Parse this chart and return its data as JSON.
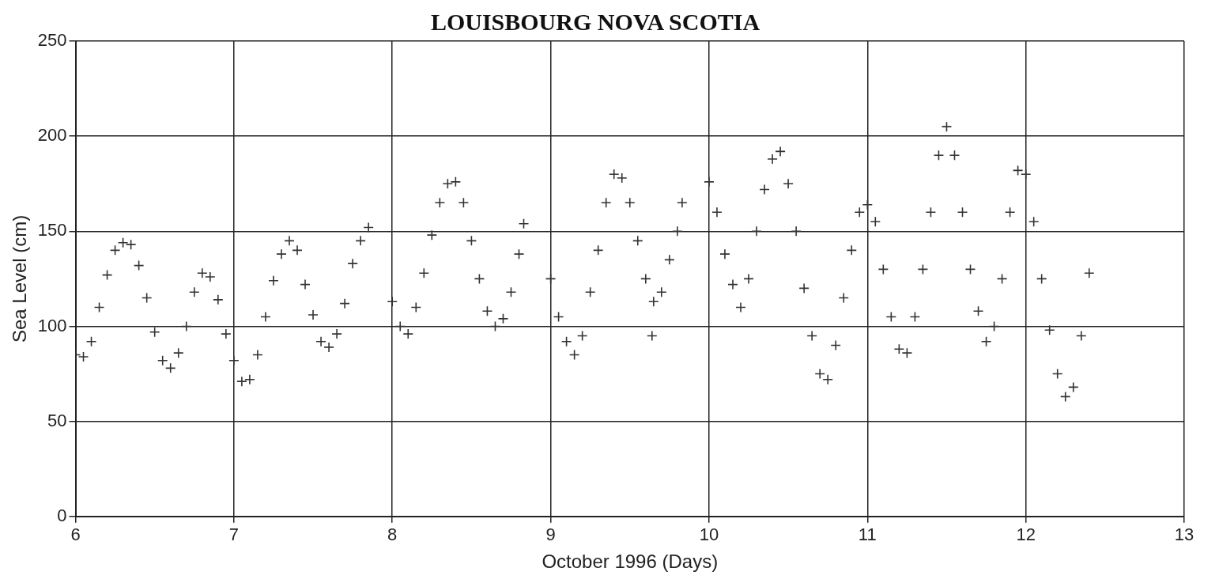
{
  "chart_data": {
    "type": "scatter",
    "title": "LOUISBOURG NOVA SCOTIA",
    "xlabel": "October 1996 (Days)",
    "ylabel": "Sea Level (cm)",
    "xlim": [
      6,
      13
    ],
    "xticks": [
      6,
      7,
      8,
      9,
      10,
      11,
      12,
      13
    ],
    "ylim": [
      0,
      250
    ],
    "yticks": [
      0,
      50,
      100,
      150,
      200,
      250
    ],
    "grid": true,
    "marker": "cross",
    "series": [
      {
        "color": "#333333",
        "x": [
          6.0,
          6.05,
          6.1,
          6.15,
          6.2,
          6.25,
          6.3,
          6.35,
          6.4,
          6.45,
          6.5,
          6.55,
          6.6,
          6.65,
          6.7,
          6.75,
          6.8,
          6.85,
          6.9,
          6.95,
          7.0,
          7.05,
          7.1,
          7.15,
          7.2,
          7.25,
          7.3,
          7.35,
          7.4,
          7.45,
          7.5,
          7.55,
          7.6,
          7.65,
          7.7,
          7.75,
          7.8,
          7.85,
          8.0,
          8.05,
          8.1,
          8.15,
          8.2,
          8.25,
          8.3,
          8.35,
          8.4,
          8.45,
          8.5,
          8.55,
          8.6,
          8.65,
          8.7,
          8.75,
          8.8,
          8.83,
          9.0,
          9.05,
          9.1,
          9.15,
          9.2,
          9.25,
          9.3,
          9.35,
          9.4,
          9.45,
          9.5,
          9.55,
          9.6,
          9.64,
          9.65,
          9.7,
          9.75,
          9.8,
          9.83,
          10.0,
          10.05,
          10.1,
          10.15,
          10.2,
          10.25,
          10.3,
          10.35,
          10.4,
          10.45,
          10.5,
          10.55,
          10.6,
          10.65,
          10.7,
          10.75,
          10.8,
          10.85,
          10.9,
          10.95,
          11.0,
          11.05,
          11.1,
          11.15,
          11.2,
          11.25,
          11.3,
          11.35,
          11.4,
          11.45,
          11.5,
          11.55,
          11.6,
          11.65,
          11.7,
          11.75,
          11.8,
          11.85,
          11.9,
          11.95,
          12.0,
          12.05,
          12.1,
          12.15,
          12.2,
          12.25,
          12.3,
          12.35,
          12.4
        ],
        "values": [
          85,
          84,
          92,
          110,
          127,
          140,
          144,
          143,
          132,
          115,
          97,
          82,
          78,
          86,
          100,
          118,
          128,
          126,
          114,
          96,
          82,
          71,
          72,
          85,
          105,
          124,
          138,
          145,
          140,
          122,
          106,
          92,
          89,
          96,
          112,
          133,
          145,
          152,
          113,
          100,
          96,
          110,
          128,
          148,
          165,
          175,
          176,
          165,
          145,
          125,
          108,
          100,
          104,
          118,
          138,
          154,
          125,
          105,
          92,
          85,
          95,
          118,
          140,
          165,
          180,
          178,
          165,
          145,
          125,
          95,
          113,
          118,
          135,
          150,
          165,
          176,
          160,
          138,
          122,
          110,
          125,
          150,
          172,
          188,
          192,
          175,
          150,
          120,
          95,
          75,
          72,
          90,
          115,
          140,
          160,
          164,
          155,
          130,
          105,
          88,
          86,
          105,
          130,
          160,
          190,
          205,
          190,
          160,
          130,
          108,
          92,
          100,
          125,
          160,
          182,
          180,
          155,
          125,
          98,
          75,
          63,
          68,
          95,
          128
        ]
      }
    ]
  }
}
